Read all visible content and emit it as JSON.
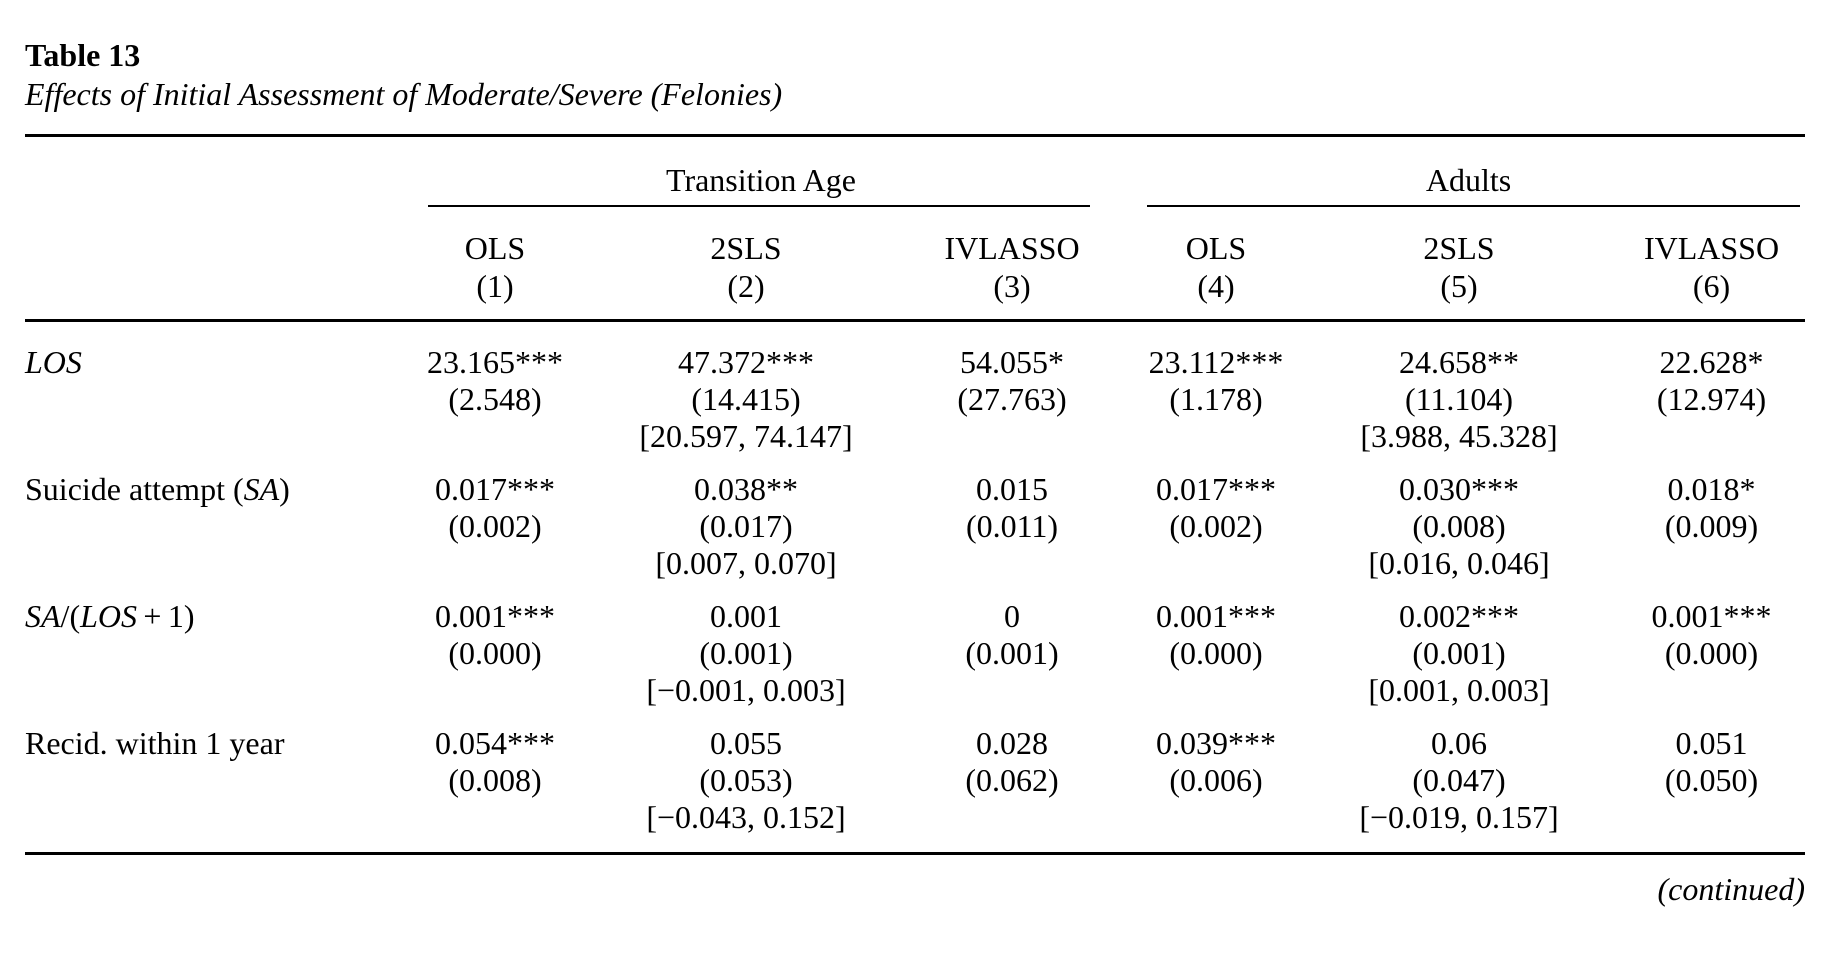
{
  "page": {
    "title": "Table 13",
    "subtitle": "Effects of Initial Assessment of Moderate/Severe (Felonies)",
    "continued": "(continued)"
  },
  "table": {
    "group_headers": [
      {
        "label": "Transition Age"
      },
      {
        "label": "Adults"
      }
    ],
    "columns": [
      {
        "method": "OLS",
        "number": "(1)"
      },
      {
        "method": "2SLS",
        "number": "(2)"
      },
      {
        "method": "IVLASSO",
        "number": "(3)"
      },
      {
        "method": "OLS",
        "number": "(4)"
      },
      {
        "method": "2SLS",
        "number": "(5)"
      },
      {
        "method": "IVLASSO",
        "number": "(6)"
      }
    ],
    "rows": [
      {
        "label_parts": [
          {
            "text": "LOS",
            "italic": true
          }
        ],
        "cells": [
          {
            "est": "23.165",
            "stars": "***",
            "se": "(2.548)",
            "ci": ""
          },
          {
            "est": "47.372",
            "stars": "***",
            "se": "(14.415)",
            "ci": "[20.597, 74.147]"
          },
          {
            "est": "54.055",
            "stars": "*",
            "se": "(27.763)",
            "ci": ""
          },
          {
            "est": "23.112",
            "stars": "***",
            "se": "(1.178)",
            "ci": ""
          },
          {
            "est": "24.658",
            "stars": "**",
            "se": "(11.104)",
            "ci": "[3.988, 45.328]"
          },
          {
            "est": "22.628",
            "stars": "*",
            "se": "(12.974)",
            "ci": ""
          }
        ]
      },
      {
        "label_parts": [
          {
            "text": "Suicide attempt (",
            "italic": false
          },
          {
            "text": "SA",
            "italic": true
          },
          {
            "text": ")",
            "italic": false
          }
        ],
        "cells": [
          {
            "est": "0.017",
            "stars": "***",
            "se": "(0.002)",
            "ci": ""
          },
          {
            "est": "0.038",
            "stars": "**",
            "se": "(0.017)",
            "ci": "[0.007, 0.070]"
          },
          {
            "est": "0.015",
            "stars": "",
            "se": "(0.011)",
            "ci": ""
          },
          {
            "est": "0.017",
            "stars": "***",
            "se": "(0.002)",
            "ci": ""
          },
          {
            "est": "0.030",
            "stars": "***",
            "se": "(0.008)",
            "ci": "[0.016, 0.046]"
          },
          {
            "est": "0.018",
            "stars": "*",
            "se": "(0.009)",
            "ci": ""
          }
        ]
      },
      {
        "label_parts": [
          {
            "text": "SA",
            "italic": true
          },
          {
            "text": "/(",
            "italic": false
          },
          {
            "text": "LOS",
            "italic": true
          },
          {
            "text": " + 1)",
            "italic": false
          }
        ],
        "cells": [
          {
            "est": "0.001",
            "stars": "***",
            "se": "(0.000)",
            "ci": ""
          },
          {
            "est": "0.001",
            "stars": "",
            "se": "(0.001)",
            "ci": "[−0.001, 0.003]"
          },
          {
            "est": "0",
            "stars": "",
            "se": "(0.001)",
            "ci": ""
          },
          {
            "est": "0.001",
            "stars": "***",
            "se": "(0.000)",
            "ci": ""
          },
          {
            "est": "0.002",
            "stars": "***",
            "se": "(0.001)",
            "ci": "[0.001, 0.003]"
          },
          {
            "est": "0.001",
            "stars": "***",
            "se": "(0.000)",
            "ci": ""
          }
        ]
      },
      {
        "label_parts": [
          {
            "text": "Recid. within 1 year",
            "italic": false
          }
        ],
        "cells": [
          {
            "est": "0.054",
            "stars": "***",
            "se": "(0.008)",
            "ci": ""
          },
          {
            "est": "0.055",
            "stars": "",
            "se": "(0.053)",
            "ci": "[−0.043, 0.152]"
          },
          {
            "est": "0.028",
            "stars": "",
            "se": "(0.062)",
            "ci": ""
          },
          {
            "est": "0.039",
            "stars": "***",
            "se": "(0.006)",
            "ci": ""
          },
          {
            "est": "0.06",
            "stars": "",
            "se": "(0.047)",
            "ci": "[−0.019, 0.157]"
          },
          {
            "est": "0.051",
            "stars": "",
            "se": "(0.050)",
            "ci": ""
          }
        ]
      }
    ]
  }
}
